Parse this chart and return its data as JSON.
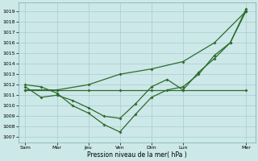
{
  "background_color": "#cce8e8",
  "grid_color": "#aacccc",
  "line_color": "#2d6a2d",
  "xlabel": "Pression niveau de la mer( hPa )",
  "ylim": [
    1006.5,
    1019.8
  ],
  "yticks": [
    1007,
    1008,
    1009,
    1010,
    1011,
    1012,
    1013,
    1014,
    1015,
    1016,
    1017,
    1018,
    1019
  ],
  "xtick_labels": [
    "Sam",
    "Mar",
    "Jeu",
    "Ven",
    "Dim",
    "Lun",
    "Mer"
  ],
  "xtick_positions": [
    0,
    24,
    48,
    72,
    96,
    120,
    168
  ],
  "xlim": [
    -5,
    175
  ],
  "series_flat": {
    "x": [
      0,
      24,
      48,
      72,
      96,
      120,
      168
    ],
    "y": [
      1011.5,
      1011.5,
      1011.5,
      1011.5,
      1011.5,
      1011.5,
      1011.5
    ]
  },
  "series_high": {
    "x": [
      0,
      24,
      48,
      72,
      96,
      120,
      144,
      168
    ],
    "y": [
      1011.5,
      1011.5,
      1012.0,
      1013.0,
      1013.5,
      1014.2,
      1016.0,
      1019.0
    ]
  },
  "series_wavy": {
    "x": [
      0,
      12,
      24,
      36,
      48,
      60,
      72,
      84,
      96,
      108,
      120,
      132,
      144,
      156,
      168
    ],
    "y": [
      1012.0,
      1011.8,
      1011.2,
      1010.0,
      1009.3,
      1008.2,
      1007.5,
      1009.2,
      1010.8,
      1011.5,
      1011.8,
      1013.0,
      1014.8,
      1016.0,
      1019.0
    ]
  },
  "series_mid": {
    "x": [
      0,
      12,
      24,
      36,
      48,
      60,
      72,
      84,
      96,
      108,
      120,
      132,
      144,
      156,
      168
    ],
    "y": [
      1011.8,
      1010.8,
      1011.0,
      1010.5,
      1009.8,
      1009.0,
      1008.8,
      1010.2,
      1011.8,
      1012.5,
      1011.5,
      1013.2,
      1014.5,
      1016.0,
      1019.2
    ]
  }
}
